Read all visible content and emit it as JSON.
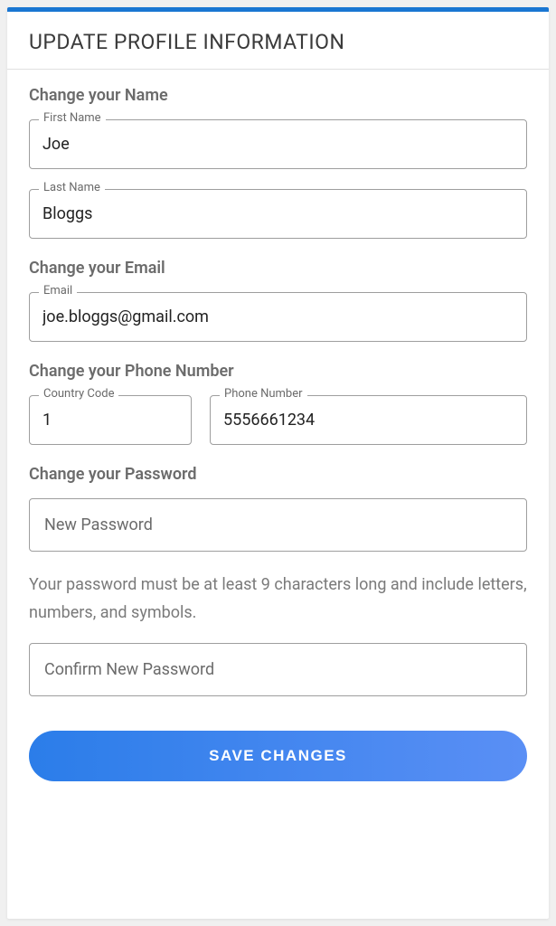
{
  "header": {
    "title": "UPDATE PROFILE INFORMATION"
  },
  "name_section": {
    "heading": "Change your Name",
    "first_name": {
      "label": "First Name",
      "value": "Joe"
    },
    "last_name": {
      "label": "Last Name",
      "value": "Bloggs"
    }
  },
  "email_section": {
    "heading": "Change your Email",
    "email": {
      "label": "Email",
      "value": "joe.bloggs@gmail.com"
    }
  },
  "phone_section": {
    "heading": "Change your Phone Number",
    "country_code": {
      "label": "Country Code",
      "value": "1"
    },
    "phone_number": {
      "label": "Phone Number",
      "value": "5556661234"
    }
  },
  "password_section": {
    "heading": "Change your Password",
    "new_password": {
      "placeholder": "New Password"
    },
    "help_text": "Your password must be at least 9 characters long and include letters, numbers, and symbols.",
    "confirm_password": {
      "placeholder": "Confirm New Password"
    }
  },
  "actions": {
    "save_label": "SAVE CHANGES"
  },
  "colors": {
    "accent": "#1976d2",
    "button_gradient_start": "#2b7de9",
    "button_gradient_end": "#5a8ff5",
    "border": "#9e9e9e",
    "text_primary": "#222222",
    "text_muted": "#6b6b6b",
    "background": "#ffffff"
  }
}
